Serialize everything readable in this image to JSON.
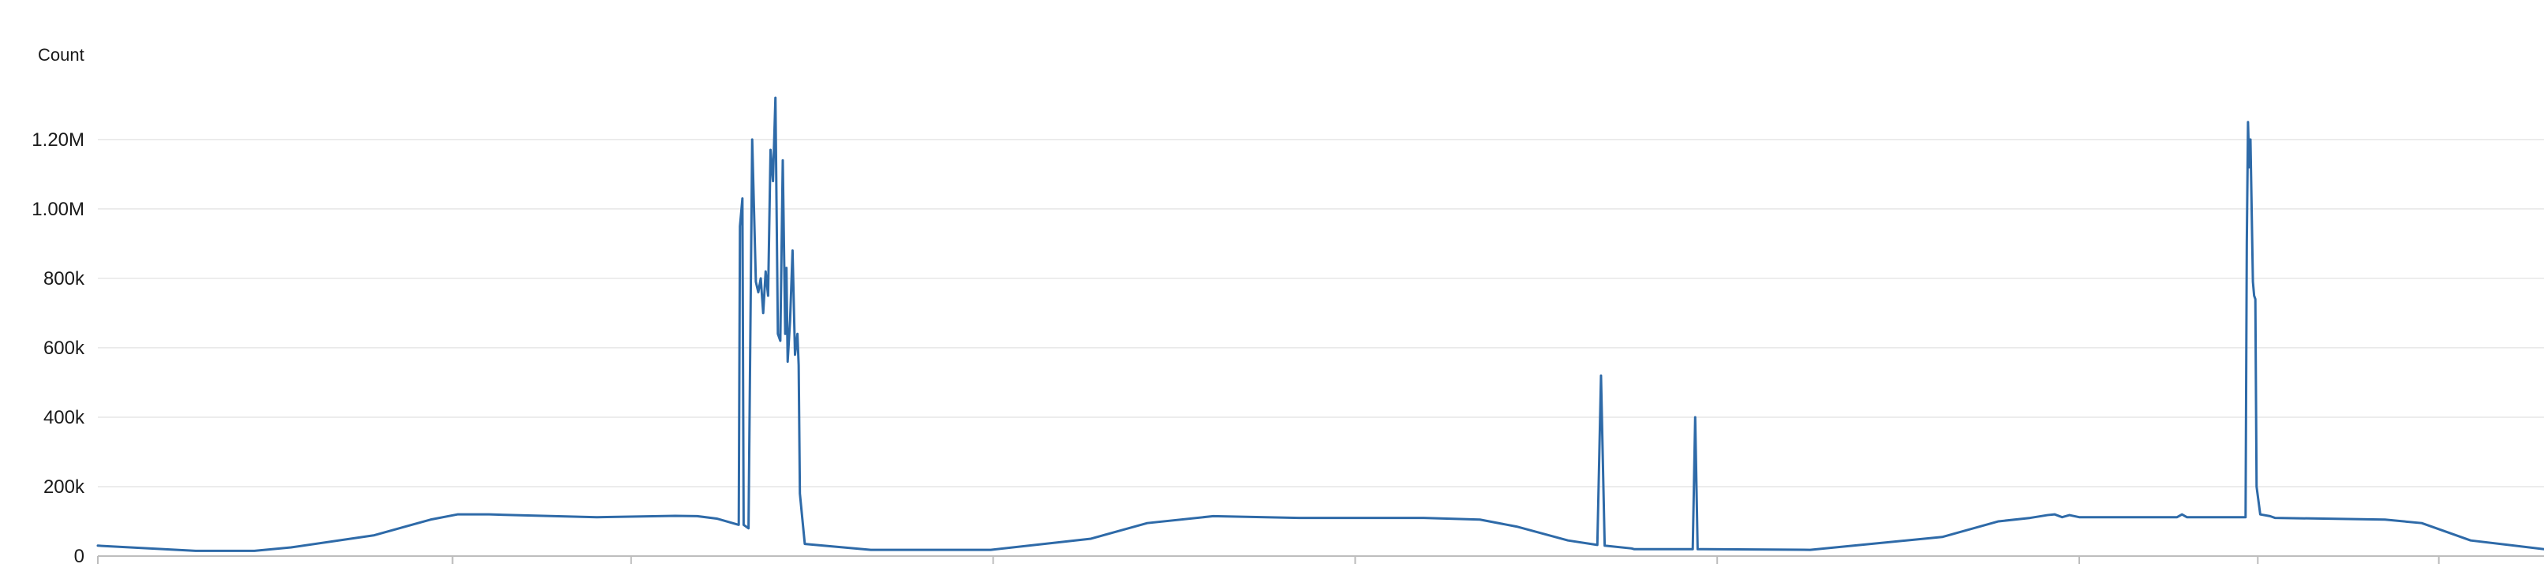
{
  "chart_data": {
    "type": "line",
    "title": "",
    "xlabel": "",
    "ylabel": "Count",
    "ylim": [
      0,
      1320000
    ],
    "yticks": [
      0,
      200000,
      400000,
      600000,
      800000,
      1000000,
      1200000
    ],
    "ytick_labels": [
      "0",
      "200k",
      "400k",
      "600k",
      "800k",
      "1.00M",
      "1.20M"
    ],
    "xlim": [
      0,
      1000
    ],
    "x_ticks": [
      0,
      145,
      218,
      366,
      514,
      662,
      810,
      883,
      957
    ],
    "grid": true,
    "legend": "none",
    "colors": {
      "line": "#2e6aa8",
      "grid": "#e6e6e6",
      "axis": "#bdbdbd",
      "text": "#1a1a1a"
    },
    "series": [
      {
        "values": [
          [
            0,
            30000
          ],
          [
            40,
            15000
          ],
          [
            64,
            15000
          ],
          [
            79,
            25000
          ],
          [
            113,
            60000
          ],
          [
            136,
            105000
          ],
          [
            147,
            120000
          ],
          [
            160,
            120000
          ],
          [
            204,
            112000
          ],
          [
            236,
            116000
          ],
          [
            245,
            115000
          ],
          [
            253,
            108000
          ],
          [
            262,
            90000
          ],
          [
            262.5,
            950000
          ],
          [
            263.5,
            1030000
          ],
          [
            264,
            90000
          ],
          [
            266,
            80000
          ],
          [
            267.5,
            1200000
          ],
          [
            269,
            790000
          ],
          [
            270,
            760000
          ],
          [
            271,
            800000
          ],
          [
            272,
            700000
          ],
          [
            273,
            820000
          ],
          [
            274,
            750000
          ],
          [
            275,
            1170000
          ],
          [
            276,
            1080000
          ],
          [
            277,
            1320000
          ],
          [
            278,
            640000
          ],
          [
            279,
            620000
          ],
          [
            280,
            1140000
          ],
          [
            281,
            640000
          ],
          [
            281.5,
            830000
          ],
          [
            282,
            560000
          ],
          [
            283,
            680000
          ],
          [
            284,
            880000
          ],
          [
            285,
            580000
          ],
          [
            286,
            640000
          ],
          [
            286.5,
            550000
          ],
          [
            287,
            180000
          ],
          [
            289,
            35000
          ],
          [
            316,
            18000
          ],
          [
            365,
            18000
          ],
          [
            406,
            50000
          ],
          [
            429,
            95000
          ],
          [
            456,
            115000
          ],
          [
            491,
            110000
          ],
          [
            542,
            110000
          ],
          [
            565,
            105000
          ],
          [
            580,
            85000
          ],
          [
            601,
            45000
          ],
          [
            613,
            32000
          ],
          [
            614.5,
            520000
          ],
          [
            616,
            30000
          ],
          [
            627,
            22000
          ],
          [
            628,
            20000
          ],
          [
            652,
            20000
          ],
          [
            653,
            400000
          ],
          [
            654,
            20000
          ],
          [
            700,
            18000
          ],
          [
            754,
            55000
          ],
          [
            777,
            100000
          ],
          [
            790,
            110000
          ],
          [
            797,
            118000
          ],
          [
            800,
            120000
          ],
          [
            803,
            112000
          ],
          [
            806,
            118000
          ],
          [
            810,
            112000
          ],
          [
            850,
            112000
          ],
          [
            852,
            120000
          ],
          [
            854,
            112000
          ],
          [
            878,
            112000
          ],
          [
            878.5,
            900000
          ],
          [
            879,
            1250000
          ],
          [
            879.5,
            1120000
          ],
          [
            880,
            1200000
          ],
          [
            881,
            790000
          ],
          [
            881.5,
            750000
          ],
          [
            882,
            740000
          ],
          [
            882.5,
            200000
          ],
          [
            884,
            120000
          ],
          [
            888,
            115000
          ],
          [
            890,
            110000
          ],
          [
            935,
            105000
          ],
          [
            950,
            95000
          ],
          [
            954,
            85000
          ],
          [
            970,
            45000
          ],
          [
            1000,
            20000
          ]
        ]
      }
    ]
  }
}
